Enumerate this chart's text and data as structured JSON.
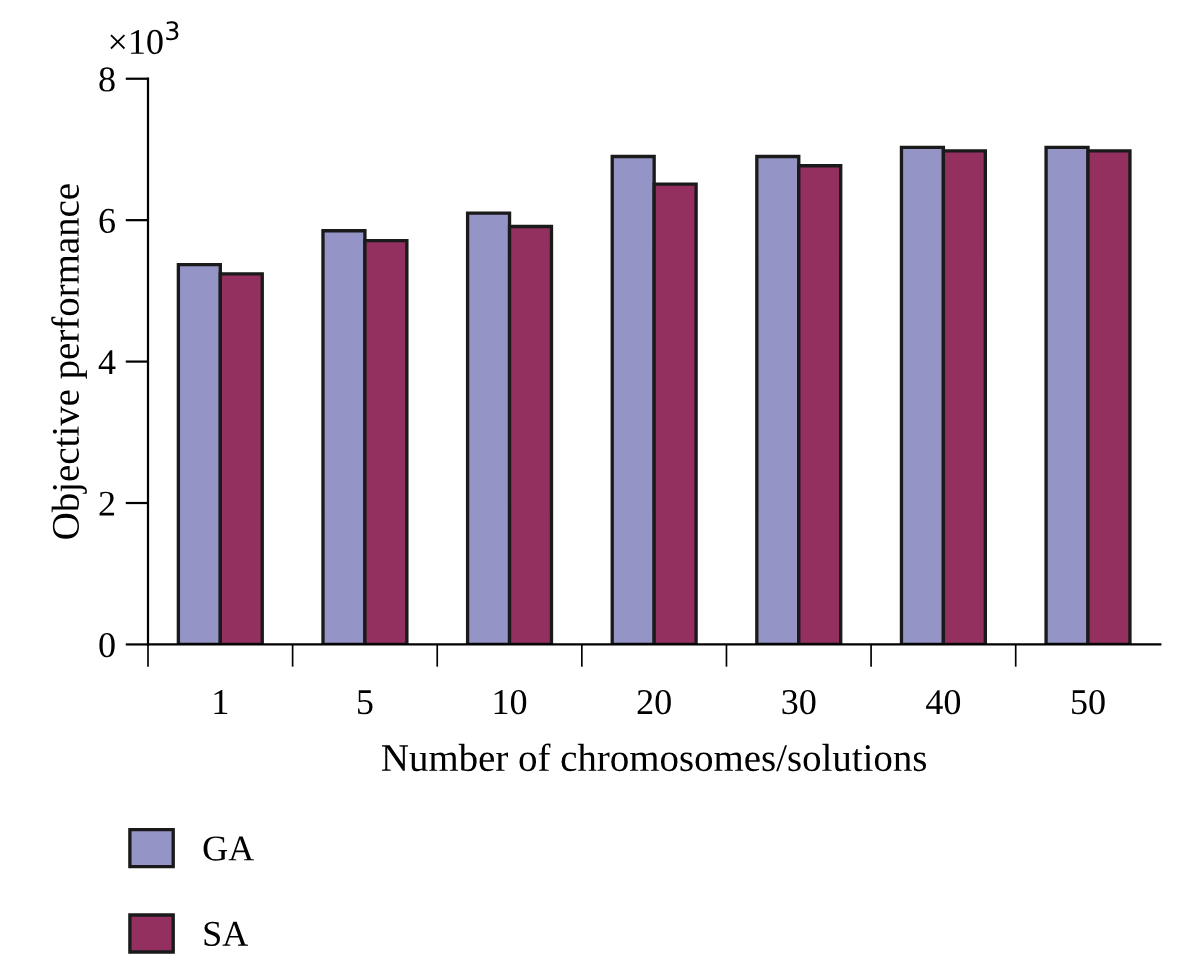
{
  "chart_data": {
    "type": "bar",
    "xlabel": "Number of chromosomes/solutions",
    "ylabel": "Objective performance",
    "annotations": [
      "×10$^{3}$"
    ],
    "categories": [
      "1",
      "5",
      "10",
      "20",
      "30",
      "40",
      "50"
    ],
    "series": [
      {
        "name": "GA",
        "color": "#9494c6",
        "values": [
          5.37,
          5.85,
          6.1,
          6.9,
          6.9,
          7.03,
          7.03
        ]
      },
      {
        "name": "SA",
        "color": "#933060",
        "values": [
          5.24,
          5.71,
          5.91,
          6.51,
          6.77,
          6.98,
          6.98
        ]
      }
    ],
    "ylim": [
      0,
      8
    ],
    "yticks": [
      0,
      2,
      4,
      6,
      8
    ],
    "grid": false,
    "legend": "bottom left"
  }
}
